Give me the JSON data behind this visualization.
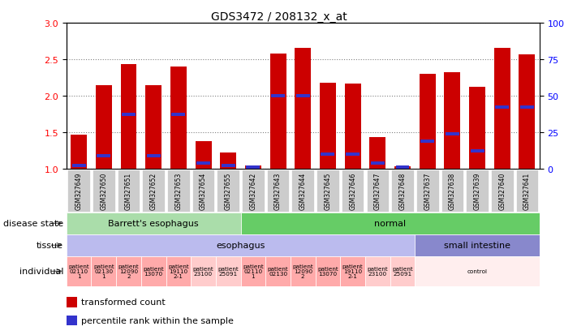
{
  "title": "GDS3472 / 208132_x_at",
  "samples": [
    "GSM327649",
    "GSM327650",
    "GSM327651",
    "GSM327652",
    "GSM327653",
    "GSM327654",
    "GSM327655",
    "GSM327642",
    "GSM327643",
    "GSM327644",
    "GSM327645",
    "GSM327646",
    "GSM327647",
    "GSM327648",
    "GSM327637",
    "GSM327638",
    "GSM327639",
    "GSM327640",
    "GSM327641"
  ],
  "transformed_count": [
    1.47,
    2.15,
    2.43,
    2.15,
    2.4,
    1.38,
    1.22,
    1.05,
    2.58,
    2.65,
    2.18,
    2.17,
    1.43,
    1.03,
    2.3,
    2.32,
    2.12,
    2.65,
    2.57
  ],
  "percentile_rank_val": [
    2,
    9,
    37,
    9,
    37,
    4,
    2,
    1,
    50,
    50,
    10,
    10,
    4,
    1,
    19,
    24,
    12,
    42,
    42
  ],
  "ylim": [
    1.0,
    3.0
  ],
  "right_ylim": [
    0,
    100
  ],
  "yticks_left": [
    1.0,
    1.5,
    2.0,
    2.5,
    3.0
  ],
  "yticks_right": [
    0,
    25,
    50,
    75,
    100
  ],
  "bar_color": "#CC0000",
  "dot_color": "#3333CC",
  "bg_color": "#DDDDDD",
  "disease_state_groups": [
    {
      "label": "Barrett's esophagus",
      "start": 0,
      "end": 7,
      "color": "#AADDAA"
    },
    {
      "label": "normal",
      "start": 7,
      "end": 19,
      "color": "#66CC66"
    }
  ],
  "tissue_groups": [
    {
      "label": "esophagus",
      "start": 0,
      "end": 14,
      "color": "#BBBBEE"
    },
    {
      "label": "small intestine",
      "start": 14,
      "end": 19,
      "color": "#8888CC"
    }
  ],
  "individual_groups": [
    {
      "lines": [
        "patient",
        "02110",
        "1"
      ],
      "start": 0,
      "end": 1,
      "color": "#FFAAAA"
    },
    {
      "lines": [
        "patient",
        "02130",
        "1"
      ],
      "start": 1,
      "end": 2,
      "color": "#FFAAAA"
    },
    {
      "lines": [
        "patient",
        "12090",
        "2"
      ],
      "start": 2,
      "end": 3,
      "color": "#FFAAAA"
    },
    {
      "lines": [
        "patient",
        "13070",
        ""
      ],
      "start": 3,
      "end": 4,
      "color": "#FFAAAA"
    },
    {
      "lines": [
        "patient",
        "19110",
        "2-1"
      ],
      "start": 4,
      "end": 5,
      "color": "#FFAAAA"
    },
    {
      "lines": [
        "patient",
        "23100",
        ""
      ],
      "start": 5,
      "end": 6,
      "color": "#FFCCCC"
    },
    {
      "lines": [
        "patient",
        "25091",
        ""
      ],
      "start": 6,
      "end": 7,
      "color": "#FFCCCC"
    },
    {
      "lines": [
        "patient",
        "02110",
        "1"
      ],
      "start": 7,
      "end": 8,
      "color": "#FFAAAA"
    },
    {
      "lines": [
        "patient",
        "02130",
        ""
      ],
      "start": 8,
      "end": 9,
      "color": "#FFAAAA"
    },
    {
      "lines": [
        "patient",
        "12090",
        "2"
      ],
      "start": 9,
      "end": 10,
      "color": "#FFAAAA"
    },
    {
      "lines": [
        "patient",
        "13070",
        ""
      ],
      "start": 10,
      "end": 11,
      "color": "#FFAAAA"
    },
    {
      "lines": [
        "patient",
        "19110",
        "2-1"
      ],
      "start": 11,
      "end": 12,
      "color": "#FFAAAA"
    },
    {
      "lines": [
        "patient",
        "23100",
        ""
      ],
      "start": 12,
      "end": 13,
      "color": "#FFCCCC"
    },
    {
      "lines": [
        "patient",
        "25091",
        ""
      ],
      "start": 13,
      "end": 14,
      "color": "#FFCCCC"
    },
    {
      "lines": [
        "control",
        "",
        ""
      ],
      "start": 14,
      "end": 19,
      "color": "#FFEEEE"
    }
  ],
  "row_labels": [
    "disease state",
    "tissue",
    "individual"
  ],
  "legend_items": [
    {
      "color": "#CC0000",
      "label": "transformed count"
    },
    {
      "color": "#3333CC",
      "label": "percentile rank within the sample"
    }
  ]
}
